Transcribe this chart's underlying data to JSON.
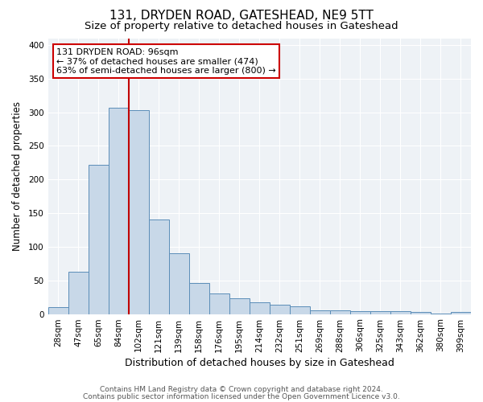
{
  "title1": "131, DRYDEN ROAD, GATESHEAD, NE9 5TT",
  "title2": "Size of property relative to detached houses in Gateshead",
  "xlabel": "Distribution of detached houses by size in Gateshead",
  "ylabel": "Number of detached properties",
  "categories": [
    "28sqm",
    "47sqm",
    "65sqm",
    "84sqm",
    "102sqm",
    "121sqm",
    "139sqm",
    "158sqm",
    "176sqm",
    "195sqm",
    "214sqm",
    "232sqm",
    "251sqm",
    "269sqm",
    "288sqm",
    "306sqm",
    "325sqm",
    "343sqm",
    "362sqm",
    "380sqm",
    "399sqm"
  ],
  "values": [
    10,
    63,
    222,
    307,
    303,
    140,
    90,
    46,
    31,
    23,
    17,
    14,
    12,
    5,
    5,
    4,
    4,
    4,
    3,
    1,
    3
  ],
  "bar_color": "#c8d8e8",
  "bar_edge_color": "#5b8db8",
  "vline_color": "#c00000",
  "annotation_title": "131 DRYDEN ROAD: 96sqm",
  "annotation_line1": "← 37% of detached houses are smaller (474)",
  "annotation_line2": "63% of semi-detached houses are larger (800) →",
  "annotation_box_color": "#ffffff",
  "annotation_box_edge": "#cc0000",
  "ylim": [
    0,
    410
  ],
  "yticks": [
    0,
    50,
    100,
    150,
    200,
    250,
    300,
    350,
    400
  ],
  "footer1": "Contains HM Land Registry data © Crown copyright and database right 2024.",
  "footer2": "Contains public sector information licensed under the Open Government Licence v3.0.",
  "bg_color": "#ffffff",
  "plot_bg_color": "#eef2f6",
  "grid_color": "#ffffff",
  "title1_fontsize": 11,
  "title2_fontsize": 9.5,
  "xlabel_fontsize": 9,
  "ylabel_fontsize": 8.5,
  "tick_fontsize": 7.5,
  "annotation_fontsize": 8,
  "footer_fontsize": 6.5
}
